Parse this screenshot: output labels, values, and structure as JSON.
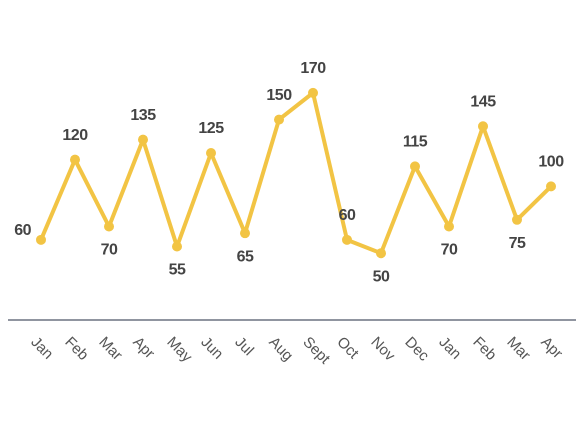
{
  "chart_data": {
    "type": "line",
    "categories": [
      "Jan",
      "Feb",
      "Mar",
      "Apr",
      "May",
      "Jun",
      "Jul",
      "Aug",
      "Sept",
      "Oct",
      "Nov",
      "Dec",
      "Jan",
      "Feb",
      "Mar",
      "Apr"
    ],
    "values": [
      60,
      120,
      70,
      135,
      55,
      125,
      65,
      150,
      170,
      60,
      50,
      115,
      70,
      145,
      75,
      100
    ],
    "color": "#f2c444"
  }
}
